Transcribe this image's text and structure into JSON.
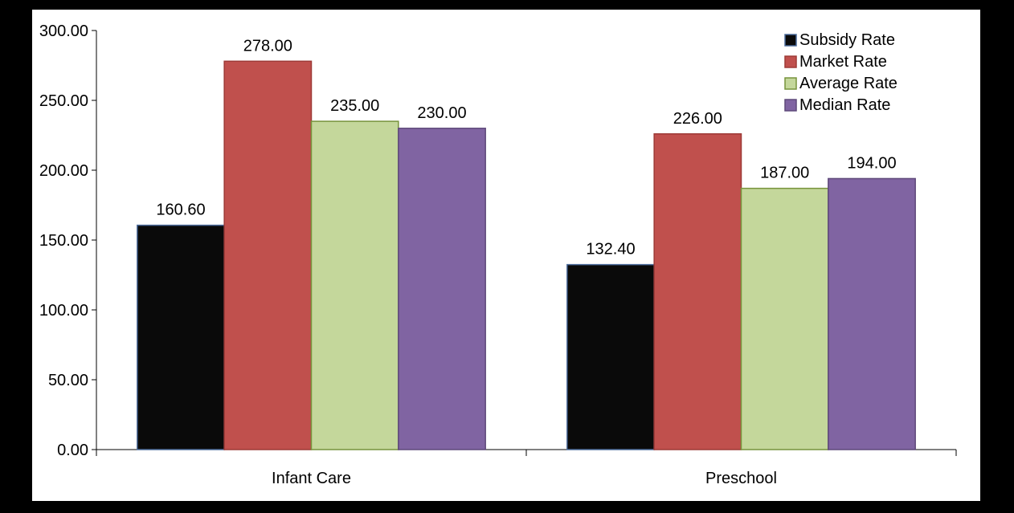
{
  "chart_data": {
    "type": "bar",
    "title": "",
    "xlabel": "",
    "ylabel": "",
    "categories": [
      "Infant Care",
      "Preschool"
    ],
    "series": [
      {
        "name": "Subsidy Rate",
        "values": [
          160.6,
          132.4
        ],
        "color": "#0a0a0a",
        "edge": "#4a6a9a"
      },
      {
        "name": "Market Rate",
        "values": [
          278.0,
          226.0
        ],
        "color": "#c0504d",
        "edge": "#9e3a37"
      },
      {
        "name": "Average Rate",
        "values": [
          235.0,
          187.0
        ],
        "color": "#c4d79b",
        "edge": "#77933c"
      },
      {
        "name": "Median Rate",
        "values": [
          230.0,
          194.0
        ],
        "color": "#8064a2",
        "edge": "#5f497a"
      }
    ],
    "ylim": [
      0,
      300
    ],
    "yticks": [
      0,
      50,
      100,
      150,
      200,
      250,
      300
    ],
    "tick_labels": [
      "0.00",
      "50.00",
      "100.00",
      "150.00",
      "200.00",
      "250.00",
      "300.00"
    ],
    "data_labels": [
      [
        "160.60",
        "132.40"
      ],
      [
        "278.00",
        "226.00"
      ],
      [
        "235.00",
        "187.00"
      ],
      [
        "230.00",
        "194.00"
      ]
    ],
    "grid": false,
    "legend": "top-right",
    "colors": {
      "plot_background": "#ffffff",
      "page_background": "#000000",
      "axis": "#000000"
    }
  }
}
